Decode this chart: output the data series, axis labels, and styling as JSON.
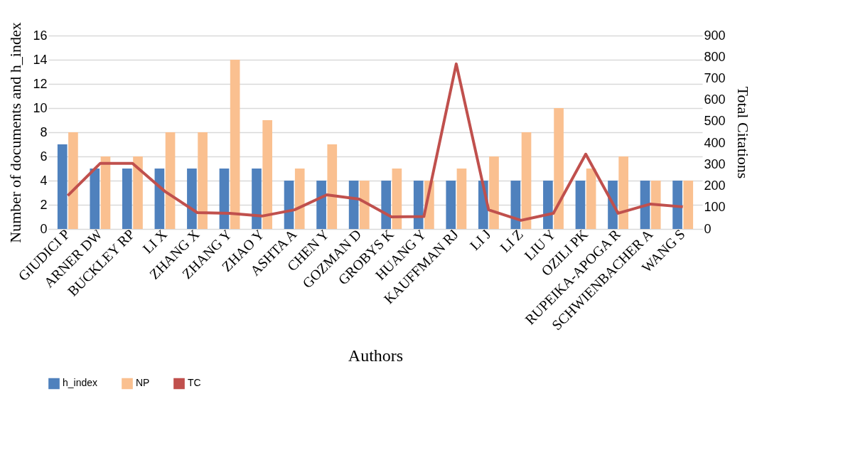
{
  "chart_data": {
    "type": "bar",
    "xlabel": "Authors",
    "ylabel": "Number of documents and h_index",
    "y2label": "Total Citations",
    "categories": [
      "GIUDICI P",
      "ARNER DW",
      "BUCKLEY RP",
      "LI X",
      "ZHANG X",
      "ZHANG Y",
      "ZHAO Y",
      "ASHTA A",
      "CHEN Y",
      "GOZMAN D",
      "GROBYS K",
      "HUANG Y",
      "KAUFFMAN RJ",
      "LI J",
      "LI Z",
      "LIU Y",
      "OZILI PK",
      "RUPEIKA-APOGA R",
      "SCHWIENBACHER A",
      "WANG S"
    ],
    "series": [
      {
        "name": "h_index",
        "type": "bar",
        "color": "#4f81bd",
        "values": [
          7,
          5,
          5,
          5,
          5,
          5,
          5,
          4,
          4,
          4,
          4,
          4,
          4,
          4,
          4,
          4,
          4,
          4,
          4,
          4
        ]
      },
      {
        "name": "NP",
        "type": "bar",
        "color": "#fac090",
        "values": [
          8,
          6,
          6,
          8,
          8,
          14,
          9,
          5,
          7,
          4,
          5,
          4,
          5,
          6,
          8,
          10,
          5,
          6,
          4,
          4
        ]
      },
      {
        "name": "TC",
        "type": "line",
        "axis": "y2",
        "color": "#c0504d",
        "values": [
          155,
          305,
          305,
          175,
          76,
          73,
          60,
          89,
          159,
          139,
          56,
          58,
          768,
          89,
          40,
          73,
          348,
          73,
          116,
          103
        ]
      }
    ],
    "ylim": [
      0,
      16
    ],
    "yticks": [
      0,
      2,
      4,
      6,
      8,
      10,
      12,
      14,
      16
    ],
    "y2lim": [
      0,
      900
    ],
    "y2ticks": [
      0,
      100,
      200,
      300,
      400,
      500,
      600,
      700,
      800,
      900
    ],
    "grid": "y",
    "legend": "bottom",
    "marker": "none"
  }
}
